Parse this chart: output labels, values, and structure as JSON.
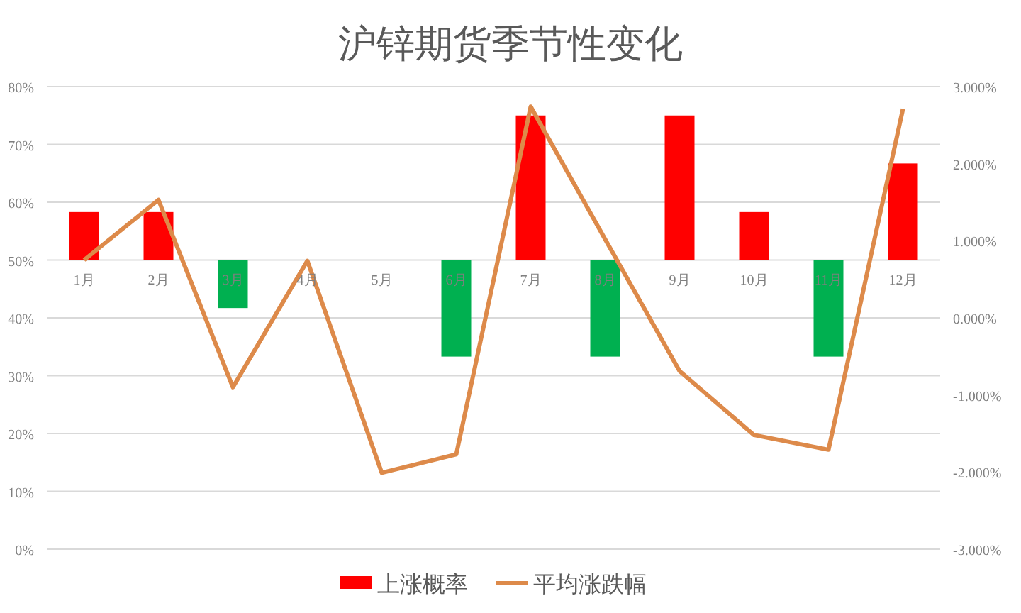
{
  "chart_data": {
    "type": "bar",
    "title": "沪锌期货季节性变化",
    "categories": [
      "1月",
      "2月",
      "3月",
      "4月",
      "5月",
      "6月",
      "7月",
      "8月",
      "9月",
      "10月",
      "11月",
      "12月"
    ],
    "series": [
      {
        "name": "上涨概率",
        "base": [
          50,
          50,
          50,
          null,
          null,
          50,
          50,
          50,
          50,
          50,
          50,
          50
        ],
        "color": "#ff0000",
        "colors": [
          "#ff0000",
          "#ff0000",
          "#00b050",
          null,
          null,
          "#00b050",
          "#ff0000",
          "#00b050",
          "#ff0000",
          "#ff0000",
          "#00b050",
          "#ff0000"
        ],
        "values": [
          8.3,
          8.3,
          -8.3,
          null,
          null,
          -16.7,
          25,
          -16.7,
          25,
          8.3,
          -16.7,
          16.7
        ]
      },
      {
        "name": "平均涨跌幅",
        "type": "line",
        "axis": "y2",
        "color": "#dd8a4a",
        "values": [
          0.75,
          1.53,
          -0.9,
          0.74,
          -2.01,
          -1.77,
          2.74,
          1.02,
          -0.69,
          -1.52,
          -1.71,
          2.71
        ]
      }
    ],
    "ylim": [
      0,
      80
    ],
    "yticks": [
      {
        "value": 0,
        "label": "0%"
      },
      {
        "value": 10,
        "label": "10%"
      },
      {
        "value": 20,
        "label": "20%"
      },
      {
        "value": 30,
        "label": "30%"
      },
      {
        "value": 40,
        "label": "40%"
      },
      {
        "value": 50,
        "label": "50%"
      },
      {
        "value": 60,
        "label": "60%"
      },
      {
        "value": 70,
        "label": "70%"
      },
      {
        "value": 80,
        "label": "80%"
      }
    ],
    "y2lim": [
      -3,
      3
    ],
    "y2ticks": [
      {
        "value": -3,
        "label": "-3.000%"
      },
      {
        "value": -2,
        "label": "-2.000%"
      },
      {
        "value": -1,
        "label": "-1.000%"
      },
      {
        "value": 0,
        "label": "0.000%"
      },
      {
        "value": 1,
        "label": "1.000%"
      },
      {
        "value": 2,
        "label": "2.000%"
      },
      {
        "value": 3,
        "label": "3.000%"
      }
    ],
    "grid": "y",
    "legend": "bottom"
  }
}
